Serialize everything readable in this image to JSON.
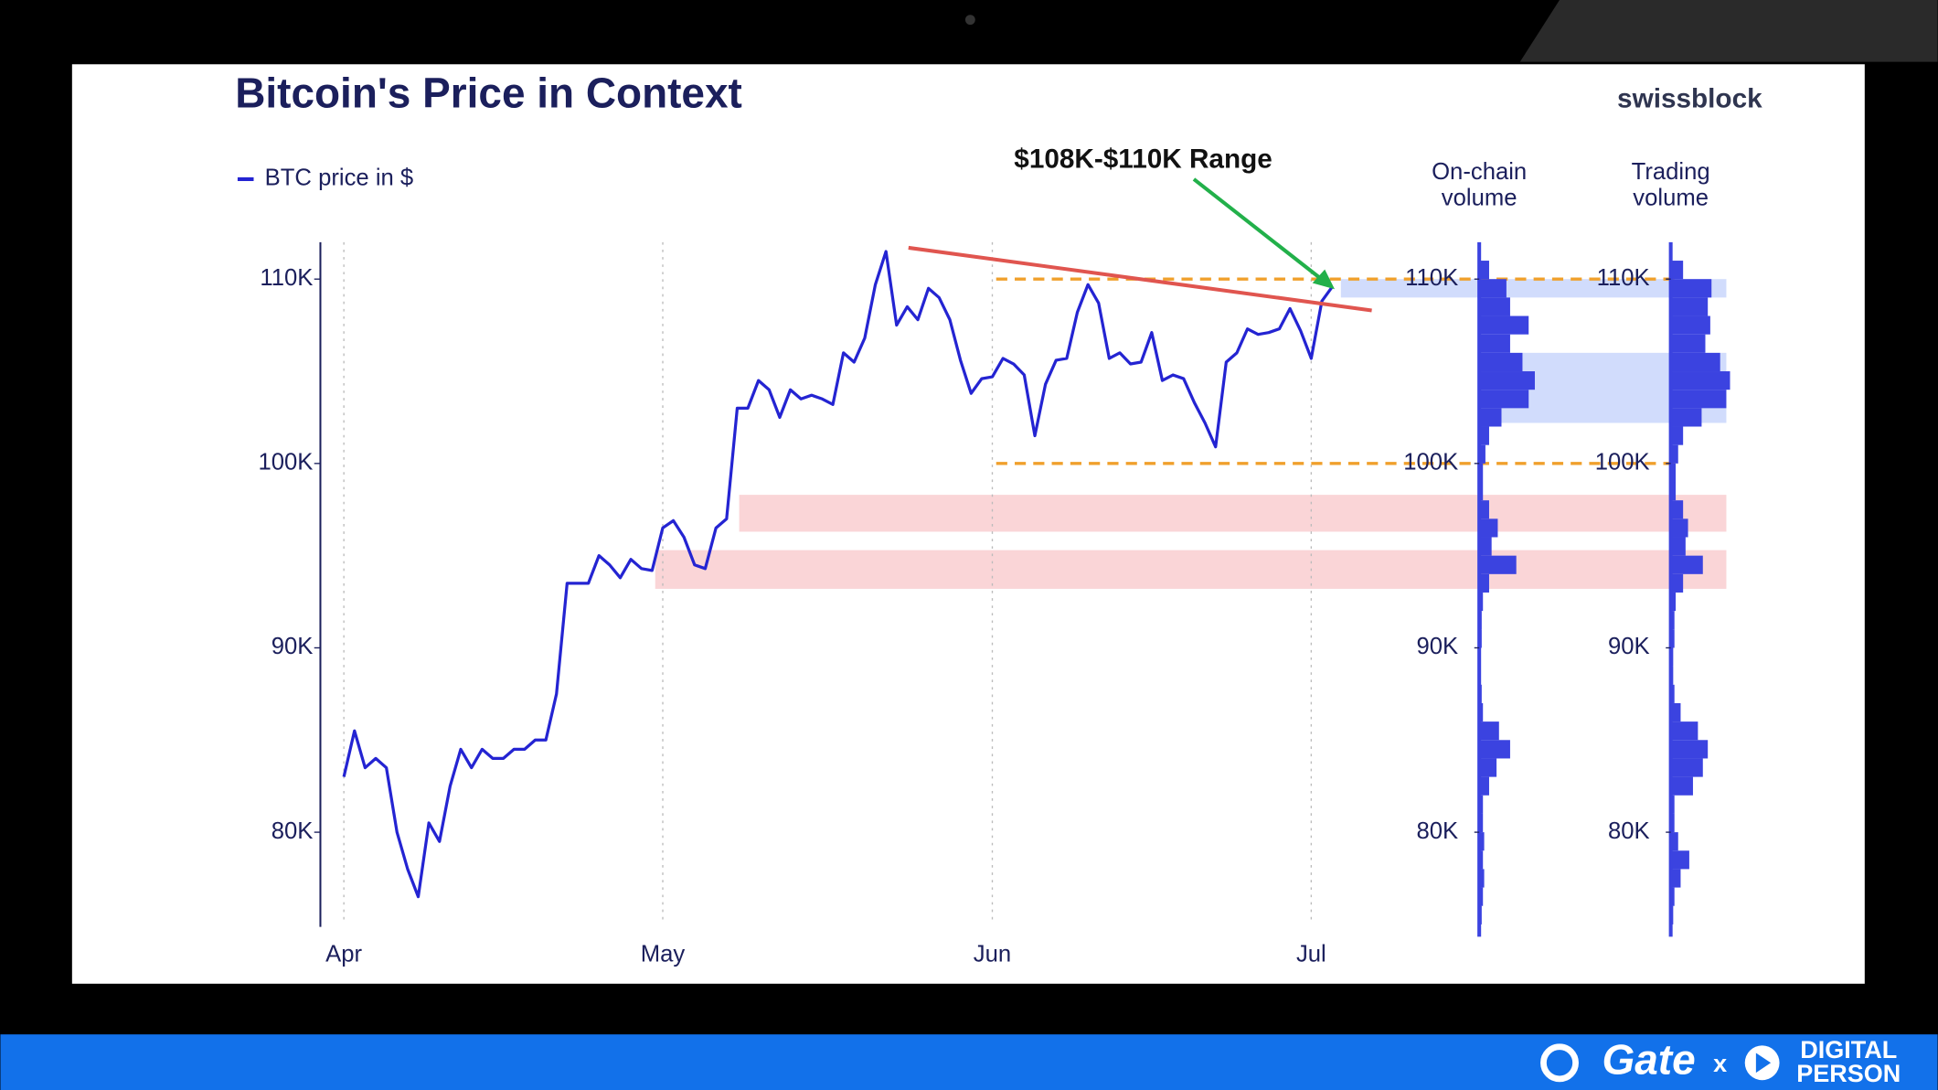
{
  "brand": "swissblock",
  "footer": {
    "brand": "Gate",
    "separator": "x",
    "partner": [
      "DIGITAL",
      "PERSON"
    ]
  },
  "chart_data": [
    {
      "type": "line",
      "title": "Bitcoin's Price in Context",
      "annotation": "$108K-$110K Range",
      "categories": [
        "Apr",
        null,
        null,
        null,
        null,
        null,
        null,
        null,
        null,
        null,
        null,
        null,
        null,
        null,
        null,
        null,
        null,
        null,
        null,
        null,
        null,
        null,
        null,
        null,
        null,
        null,
        null,
        null,
        null,
        null,
        "May",
        null,
        null,
        null,
        null,
        null,
        null,
        null,
        null,
        null,
        null,
        null,
        null,
        null,
        null,
        null,
        null,
        null,
        null,
        null,
        null,
        null,
        null,
        null,
        null,
        null,
        null,
        null,
        null,
        null,
        null,
        "Jun",
        null,
        null,
        null,
        null,
        null,
        null,
        null,
        null,
        null,
        null,
        null,
        null,
        null,
        null,
        null,
        null,
        null,
        null,
        null,
        null,
        null,
        null,
        null,
        null,
        null,
        null,
        null,
        null,
        null,
        "Jul",
        null,
        null
      ],
      "series": [
        {
          "name": "BTC price in $",
          "color": "#2424d2",
          "values": [
            83000,
            85500,
            83500,
            84000,
            83500,
            80000,
            78000,
            76500,
            80500,
            79500,
            82500,
            84500,
            83500,
            84500,
            84000,
            84000,
            84500,
            84500,
            85000,
            85000,
            87500,
            93500,
            93500,
            93500,
            95000,
            94500,
            93800,
            94800,
            94300,
            94200,
            96500,
            96900,
            96000,
            94500,
            94300,
            96500,
            97000,
            103000,
            103000,
            104500,
            104000,
            102500,
            104000,
            103500,
            103700,
            103500,
            103200,
            106000,
            105500,
            106800,
            109700,
            111500,
            107500,
            108500,
            107800,
            109500,
            109000,
            107800,
            105600,
            103800,
            104600,
            104700,
            105700,
            105400,
            104800,
            101500,
            104300,
            105600,
            105700,
            108200,
            109700,
            108700,
            105700,
            106000,
            105400,
            105500,
            107100,
            104500,
            104800,
            104600,
            103300,
            102200,
            100900,
            105500,
            106000,
            107300,
            107000,
            107100,
            107300,
            108400,
            107200,
            105700,
            108800,
            109600
          ]
        }
      ],
      "ylim": [
        75000,
        112000
      ],
      "yticks": [
        {
          "value": 80000,
          "label": "80K"
        },
        {
          "value": 90000,
          "label": "90K"
        },
        {
          "value": 100000,
          "label": "100K"
        },
        {
          "value": 110000,
          "label": "110K"
        }
      ],
      "hlines": [
        110000,
        100000
      ],
      "hline_color": "#f0a02c",
      "trendline": [
        111700,
        108300
      ],
      "trendline_color": "#e0554f",
      "support_bands": [
        [
          96300,
          98300
        ],
        [
          93200,
          95300
        ]
      ],
      "support_color": "#f7b9bd",
      "highlight_bands": [
        [
          109000,
          110000
        ],
        [
          102200,
          106000
        ]
      ],
      "highlight_color": "#c9d6fb"
    },
    {
      "type": "histogram",
      "title": "On-chain volume",
      "color": "#3b43e0",
      "orientation": "horizontal",
      "bins": [
        75000,
        76000,
        77000,
        78000,
        79000,
        80000,
        81000,
        82000,
        83000,
        84000,
        85000,
        86000,
        87000,
        88000,
        89000,
        90000,
        91000,
        92000,
        93000,
        94000,
        95000,
        96000,
        97000,
        98000,
        99000,
        100000,
        101000,
        102000,
        103000,
        104000,
        105000,
        106000,
        107000,
        108000,
        109000,
        110000,
        111000
      ],
      "values": [
        2,
        3,
        4,
        3,
        4,
        3,
        3,
        8,
        14,
        25,
        16,
        3,
        2,
        1,
        1,
        2,
        2,
        3,
        8,
        30,
        10,
        15,
        8,
        3,
        3,
        5,
        8,
        18,
        40,
        45,
        35,
        25,
        40,
        25,
        22,
        8
      ],
      "ylim": [
        75000,
        112000
      ],
      "yticks": [
        {
          "value": 80000,
          "label": "80K"
        },
        {
          "value": 90000,
          "label": "90K"
        },
        {
          "value": 100000,
          "label": "100K"
        },
        {
          "value": 110000,
          "label": "110K"
        }
      ]
    },
    {
      "type": "histogram",
      "title": "Trading volume",
      "color": "#3b43e0",
      "orientation": "horizontal",
      "bins": [
        75000,
        76000,
        77000,
        78000,
        79000,
        80000,
        81000,
        82000,
        83000,
        84000,
        85000,
        86000,
        87000,
        88000,
        89000,
        90000,
        91000,
        92000,
        93000,
        94000,
        95000,
        96000,
        97000,
        98000,
        99000,
        100000,
        101000,
        102000,
        103000,
        104000,
        105000,
        106000,
        107000,
        108000,
        109000,
        110000,
        111000
      ],
      "values": [
        2,
        3,
        8,
        15,
        6,
        3,
        3,
        18,
        26,
        30,
        22,
        8,
        3,
        2,
        2,
        3,
        3,
        4,
        10,
        26,
        12,
        14,
        10,
        4,
        4,
        6,
        10,
        25,
        45,
        48,
        40,
        28,
        32,
        30,
        33,
        10
      ],
      "ylim": [
        75000,
        112000
      ],
      "yticks": [
        {
          "value": 80000,
          "label": "80K"
        },
        {
          "value": 90000,
          "label": "90K"
        },
        {
          "value": 100000,
          "label": "100K"
        },
        {
          "value": 110000,
          "label": "110K"
        }
      ]
    }
  ]
}
